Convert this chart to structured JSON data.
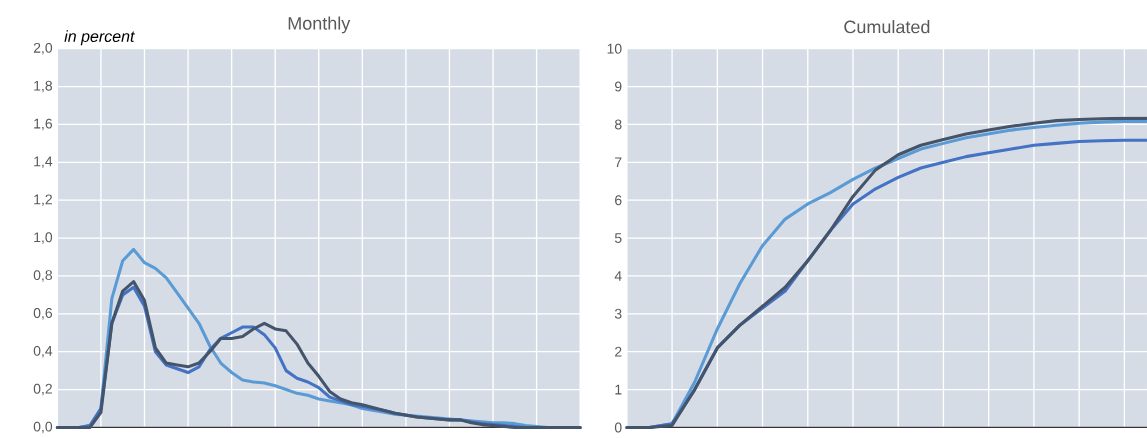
{
  "chart_data": [
    {
      "type": "line",
      "title": "Monthly",
      "annotations": [
        "in percent"
      ],
      "grid": true,
      "tick_labels": "y",
      "categories": [
        null,
        null,
        null,
        null,
        null,
        null,
        null,
        null,
        null,
        null,
        null,
        null,
        null,
        null,
        null,
        null,
        null,
        null,
        null,
        null,
        null,
        null,
        null,
        null,
        null,
        null,
        null,
        null,
        null,
        null,
        null,
        null,
        null,
        null,
        null,
        null,
        null,
        null,
        null,
        null,
        null,
        null,
        null,
        null,
        null,
        null,
        null,
        null,
        null
      ],
      "ylim": [
        0,
        2
      ],
      "yticks": [
        {
          "value": 0,
          "label": "0,0"
        },
        {
          "value": 0.2,
          "label": "0,2"
        },
        {
          "value": 0.4,
          "label": "0,4"
        },
        {
          "value": 0.6,
          "label": "0,6"
        },
        {
          "value": 0.8,
          "label": "0,8"
        },
        {
          "value": 1.0,
          "label": "1,0"
        },
        {
          "value": 1.2,
          "label": "1,2"
        },
        {
          "value": 1.4,
          "label": "1,4"
        },
        {
          "value": 1.6,
          "label": "1,6"
        },
        {
          "value": 1.8,
          "label": "1,8"
        },
        {
          "value": 2.0,
          "label": "2,0"
        }
      ],
      "series": [
        {
          "color": "#5b9bd5",
          "values": [
            0,
            0,
            0,
            0.01,
            0.1,
            0.68,
            0.88,
            0.94,
            0.87,
            0.84,
            0.79,
            0.71,
            0.63,
            0.55,
            0.43,
            0.34,
            0.29,
            0.25,
            0.24,
            0.235,
            0.22,
            0.2,
            0.18,
            0.17,
            0.15,
            0.14,
            0.13,
            0.12,
            0.1,
            0.09,
            0.08,
            0.07,
            0.065,
            0.06,
            0.055,
            0.05,
            0.045,
            0.04,
            0.035,
            0.03,
            0.025,
            0.025,
            0.02,
            0.01,
            0.005,
            0,
            0,
            0,
            0
          ]
        },
        {
          "color": "#4472c4",
          "values": [
            0,
            0,
            0,
            0.01,
            0.1,
            0.55,
            0.7,
            0.74,
            0.64,
            0.4,
            0.33,
            0.31,
            0.29,
            0.32,
            0.41,
            0.47,
            0.5,
            0.53,
            0.53,
            0.49,
            0.42,
            0.3,
            0.26,
            0.24,
            0.21,
            0.16,
            0.14,
            0.12,
            0.11,
            0.1,
            0.09,
            0.075,
            0.065,
            0.055,
            0.05,
            0.045,
            0.04,
            0.04,
            0.03,
            0.02,
            0.015,
            0.01,
            0.005,
            0,
            0,
            0,
            0,
            0,
            0
          ]
        },
        {
          "color": "#44546a",
          "values": [
            0,
            0,
            0,
            0,
            0.08,
            0.55,
            0.72,
            0.77,
            0.67,
            0.42,
            0.34,
            0.33,
            0.32,
            0.34,
            0.4,
            0.47,
            0.47,
            0.48,
            0.52,
            0.55,
            0.52,
            0.51,
            0.44,
            0.34,
            0.27,
            0.19,
            0.15,
            0.13,
            0.12,
            0.105,
            0.09,
            0.075,
            0.065,
            0.055,
            0.05,
            0.045,
            0.04,
            0.04,
            0.025,
            0.015,
            0.01,
            0.005,
            0,
            0,
            0,
            0,
            0,
            0,
            0
          ]
        }
      ]
    },
    {
      "type": "line",
      "title": "Cumulated",
      "grid": true,
      "tick_labels": "y",
      "categories": [
        null,
        null,
        null,
        null,
        null,
        null,
        null,
        null,
        null,
        null,
        null,
        null,
        null,
        null,
        null,
        null,
        null,
        null,
        null,
        null,
        null,
        null,
        null,
        null
      ],
      "ylim": [
        0,
        10
      ],
      "yticks": [
        0,
        1,
        2,
        3,
        4,
        5,
        6,
        7,
        8,
        9,
        10
      ],
      "series": [
        {
          "color": "#5b9bd5",
          "values": [
            0,
            0,
            0.1,
            1.2,
            2.6,
            3.8,
            4.8,
            5.5,
            5.9,
            6.2,
            6.55,
            6.85,
            7.1,
            7.35,
            7.5,
            7.65,
            7.75,
            7.85,
            7.92,
            7.98,
            8.03,
            8.06,
            8.08,
            8.08
          ]
        },
        {
          "color": "#4472c4",
          "values": [
            0,
            0,
            0.1,
            1.0,
            2.1,
            2.7,
            3.15,
            3.6,
            4.4,
            5.2,
            5.9,
            6.3,
            6.6,
            6.85,
            7.0,
            7.15,
            7.25,
            7.35,
            7.45,
            7.5,
            7.55,
            7.57,
            7.58,
            7.58
          ]
        },
        {
          "color": "#44546a",
          "values": [
            0,
            0,
            0.05,
            1.0,
            2.1,
            2.7,
            3.2,
            3.7,
            4.4,
            5.2,
            6.1,
            6.8,
            7.2,
            7.45,
            7.6,
            7.75,
            7.85,
            7.95,
            8.03,
            8.1,
            8.13,
            8.15,
            8.16,
            8.16
          ]
        }
      ]
    }
  ]
}
